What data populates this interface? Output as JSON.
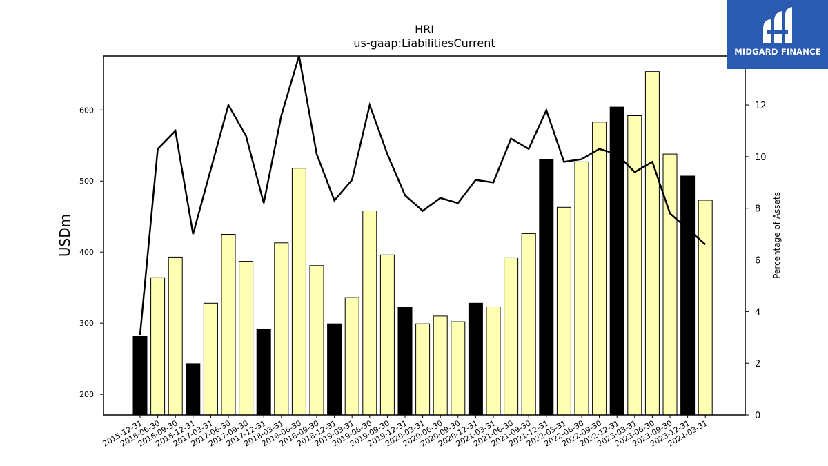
{
  "logo": {
    "text": "MIDGARD FINANCE",
    "icon": "midgard-m-logo-icon",
    "background": "#2a5bb0"
  },
  "chart_data": {
    "type": "bar",
    "title": "HRI",
    "subtitle": "us-gaap:LiabilitiesCurrent",
    "ylabel": "USDm",
    "y2label": "Percentage of Assets",
    "ylim": [
      171,
      676
    ],
    "y2lim": [
      0,
      13.9
    ],
    "yticks": [
      200,
      300,
      400,
      500,
      600
    ],
    "y2ticks": [
      0,
      2,
      4,
      6,
      8,
      10,
      12
    ],
    "grid": false,
    "colors": {
      "annual_bar": "#000000",
      "quarter_bar": "#ffffb3",
      "line": "#000000"
    },
    "categories": [
      "2015-12-31",
      "2016-06-30",
      "2016-09-30",
      "2016-12-31",
      "2017-03-31",
      "2017-06-30",
      "2017-09-30",
      "2017-12-31",
      "2018-03-31",
      "2018-06-30",
      "2018-09-30",
      "2018-12-31",
      "2019-03-31",
      "2019-06-30",
      "2019-09-30",
      "2019-12-31",
      "2020-03-31",
      "2020-06-30",
      "2020-09-30",
      "2020-12-31",
      "2021-03-31",
      "2021-06-30",
      "2021-09-30",
      "2021-12-31",
      "2022-03-31",
      "2022-06-30",
      "2022-09-30",
      "2022-12-31",
      "2023-03-31",
      "2023-06-30",
      "2023-09-30",
      "2023-12-31",
      "2024-03-31"
    ],
    "series": [
      {
        "kind": "bar",
        "values": [
          282,
          364,
          393,
          243,
          328,
          425,
          387,
          291,
          413,
          518,
          381,
          299,
          336,
          458,
          396,
          323,
          299,
          310,
          302,
          328,
          323,
          392,
          426,
          530,
          463,
          527,
          583,
          604,
          592,
          654,
          538,
          507,
          473
        ],
        "annual": [
          true,
          false,
          false,
          true,
          false,
          false,
          false,
          true,
          false,
          false,
          false,
          true,
          false,
          false,
          false,
          true,
          false,
          false,
          false,
          true,
          false,
          false,
          false,
          true,
          false,
          false,
          false,
          true,
          false,
          false,
          false,
          true,
          false
        ]
      },
      {
        "kind": "line",
        "axis": "right",
        "values": [
          3.1,
          10.3,
          11.0,
          7.0,
          9.5,
          12.0,
          10.8,
          8.2,
          11.6,
          13.9,
          10.1,
          8.3,
          9.1,
          12.0,
          10.1,
          8.5,
          7.9,
          8.4,
          8.2,
          9.1,
          9.0,
          10.7,
          10.3,
          11.8,
          9.8,
          9.9,
          10.3,
          10.1,
          9.4,
          9.8,
          7.8,
          7.2,
          6.6
        ]
      }
    ]
  }
}
